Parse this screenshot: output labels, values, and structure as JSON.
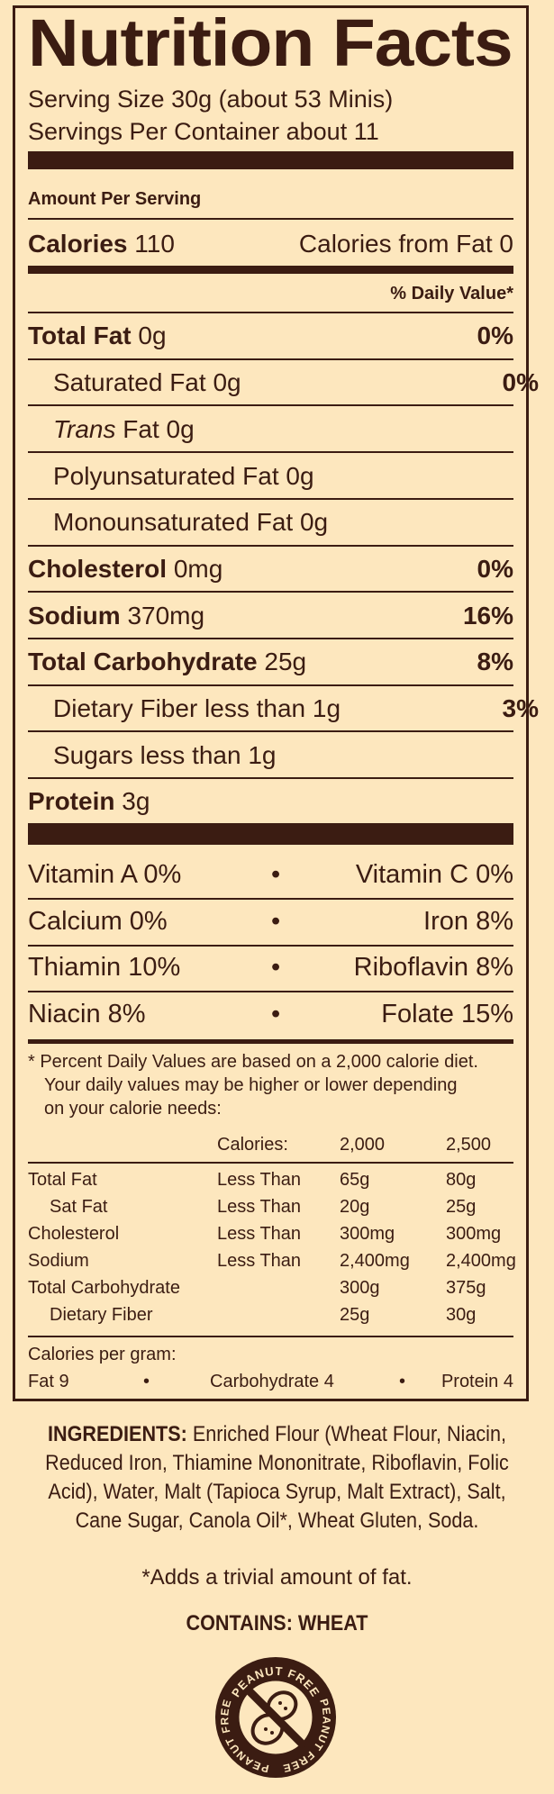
{
  "label": {
    "title": "Nutrition Facts",
    "serving_size": "Serving Size 30g (about 53 Minis)",
    "servings_per_container": "Servings Per Container about 11",
    "amount_per_serving": "Amount Per Serving",
    "calories_label": "Calories",
    "calories_value": "110",
    "calories_from_fat": "Calories from Fat 0",
    "daily_value_header": "% Daily Value*",
    "nutrients": [
      {
        "name": "Total Fat",
        "amount": "0g",
        "dv": "0%"
      },
      {
        "name": "Saturated Fat",
        "amount": "0g",
        "dv": "0%"
      },
      {
        "name": "Trans",
        "name_rest": "Fat",
        "amount": "0g",
        "dv": ""
      },
      {
        "name": "Polyunsaturated Fat",
        "amount": "0g",
        "dv": ""
      },
      {
        "name": "Monounsaturated Fat",
        "amount": "0g",
        "dv": ""
      },
      {
        "name": "Cholesterol",
        "amount": "0mg",
        "dv": "0%"
      },
      {
        "name": "Sodium",
        "amount": "370mg",
        "dv": "16%"
      },
      {
        "name": "Total Carbohydrate",
        "amount": "25g",
        "dv": "8%"
      },
      {
        "name": "Dietary Fiber",
        "amount": "less than 1g",
        "dv": "3%"
      },
      {
        "name": "Sugars",
        "amount": "less than 1g",
        "dv": ""
      },
      {
        "name": "Protein",
        "amount": "3g",
        "dv": ""
      }
    ],
    "vitamins": [
      {
        "left": "Vitamin A 0%",
        "right": "Vitamin C 0%"
      },
      {
        "left": "Calcium 0%",
        "right": "Iron 8%"
      },
      {
        "left": "Thiamin 10%",
        "right": "Riboflavin 8%"
      },
      {
        "left": "Niacin 8%",
        "right": "Folate 15%"
      }
    ],
    "bullet": "•",
    "footnote_line1": "* Percent Daily Values are based on a 2,000 calorie diet.",
    "footnote_line2": "Your daily values may be higher or lower depending",
    "footnote_line3": "on your calorie needs:",
    "dv_table": {
      "header": {
        "label": "Calories:",
        "c1": "2,000",
        "c2": "2,500"
      },
      "rows": [
        {
          "name": "Total Fat",
          "limit": "Less Than",
          "c1": "65g",
          "c2": "80g"
        },
        {
          "name": "Sat Fat",
          "limit": "Less Than",
          "c1": "20g",
          "c2": "25g"
        },
        {
          "name": "Cholesterol",
          "limit": "Less Than",
          "c1": "300mg",
          "c2": "300mg"
        },
        {
          "name": "Sodium",
          "limit": "Less Than",
          "c1": "2,400mg",
          "c2": "2,400mg"
        },
        {
          "name": "Total Carbohydrate",
          "limit": "",
          "c1": "300g",
          "c2": "375g"
        },
        {
          "name": "Dietary Fiber",
          "limit": "",
          "c1": "25g",
          "c2": "30g"
        }
      ]
    },
    "calories_per_gram": "Calories per gram:",
    "cpg_fat": "Fat 9",
    "cpg_carb": "Carbohydrate 4",
    "cpg_protein": "Protein 4"
  },
  "ingredients": {
    "label": "INGREDIENTS:",
    "text": "Enriched Flour (Wheat Flour, Niacin, Reduced Iron, Thiamine Mononitrate, Riboflavin, Folic Acid), Water, Malt (Tapioca Syrup, Malt Extract), Salt, Cane Sugar, Canola Oil*, Wheat Gluten, Soda."
  },
  "fat_note": "*Adds a trivial amount of fat.",
  "contains": "CONTAINS: WHEAT",
  "badge": {
    "text": "PEANUT FREE",
    "icon": "peanut-free-icon"
  },
  "colors": {
    "background": "#fde7be",
    "ink": "#3b1c12"
  }
}
